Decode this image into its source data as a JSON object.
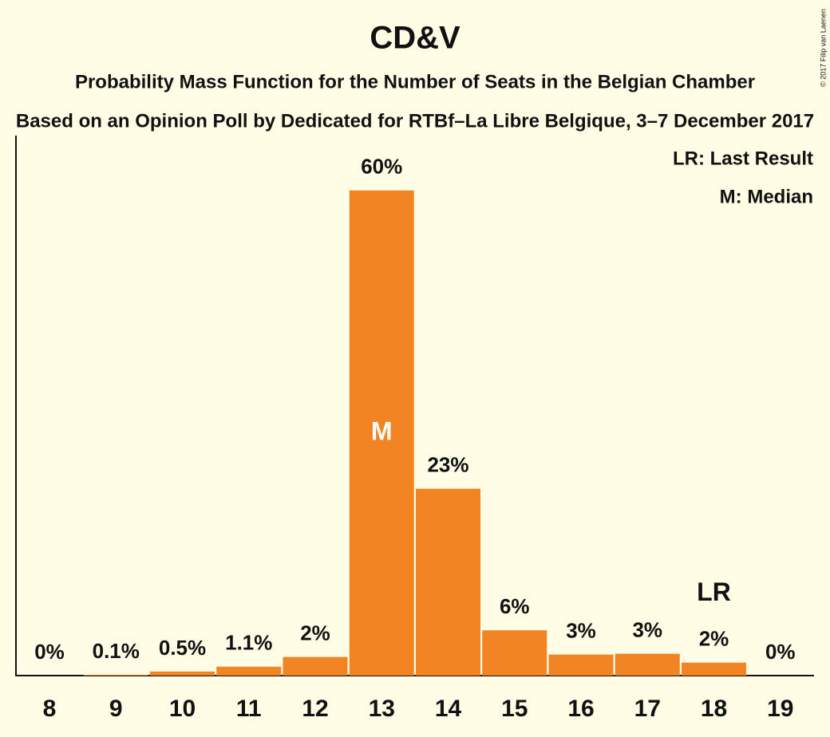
{
  "chart_data": {
    "type": "bar",
    "title": "CD&V",
    "subtitle": "Probability Mass Function for the Number of Seats in the Belgian Chamber",
    "subtitle2": "Based on an Opinion Poll by Dedicated for RTBf–La Libre Belgique, 3–7 December 2017",
    "copyright": "© 2017 Filip van Laenen",
    "categories": [
      8,
      9,
      10,
      11,
      12,
      13,
      14,
      15,
      16,
      17,
      18,
      19
    ],
    "values": [
      0,
      0.1,
      0.5,
      1.1,
      2.3,
      60,
      23.1,
      5.6,
      2.6,
      2.7,
      1.6,
      0
    ],
    "value_labels": [
      "0%",
      "0.1%",
      "0.5%",
      "1.1%",
      "2%",
      "60%",
      "23%",
      "6%",
      "3%",
      "3%",
      "2%",
      "0%"
    ],
    "color": "#f28522",
    "ylim": [
      0,
      65
    ],
    "markers": [
      {
        "label": "M",
        "category": 13
      },
      {
        "label": "LR",
        "category": 18
      }
    ],
    "legend": [
      "LR: Last Result",
      "M: Median"
    ]
  }
}
